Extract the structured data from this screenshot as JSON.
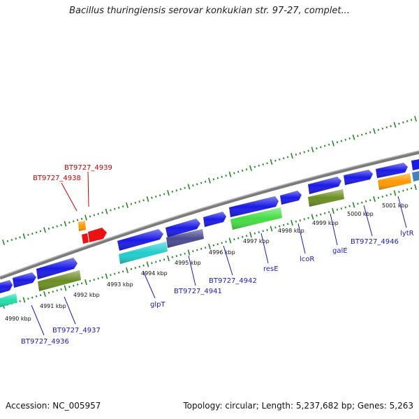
{
  "title": "Bacillus thuringiensis serovar konkukian str. 97-27, complet...",
  "footer": {
    "accession": "Accession: NC_005957",
    "summary": "Topology: circular; Length: 5,237,682 bp; Genes: 5,263"
  },
  "scale_ticks": [
    {
      "label": "4990 kbp"
    },
    {
      "label": "4991 kbp"
    },
    {
      "label": "4992 kbp"
    },
    {
      "label": "4993 kbp"
    },
    {
      "label": "4994 kbp"
    },
    {
      "label": "4995 kbp"
    },
    {
      "label": "4996 kbp"
    },
    {
      "label": "4997 kbp"
    },
    {
      "label": "4998 kbp"
    },
    {
      "label": "4999 kbp"
    },
    {
      "label": "5000 kbp"
    },
    {
      "label": "5001 kbp"
    }
  ],
  "gene_labels": [
    {
      "text": "BT9727_4939",
      "color": "#cc0000"
    },
    {
      "text": "BT9727_4938",
      "color": "#cc0000"
    },
    {
      "text": "BT9727_4936",
      "color": "#1a1acc"
    },
    {
      "text": "BT9727_4937",
      "color": "#1a1acc"
    },
    {
      "text": "glpT",
      "color": "#1a1acc"
    },
    {
      "text": "BT9727_4941",
      "color": "#1a1acc"
    },
    {
      "text": "BT9727_4942",
      "color": "#1a1acc"
    },
    {
      "text": "resE",
      "color": "#1a1acc"
    },
    {
      "text": "lcoR",
      "color": "#1a1acc"
    },
    {
      "text": "galE",
      "color": "#1a1acc"
    },
    {
      "text": "BT9727_4946",
      "color": "#1a1acc"
    },
    {
      "text": "lytR",
      "color": "#1a1acc"
    }
  ],
  "feature_colors": {
    "cds_blue": "#1a1ae6",
    "cyan": "#22cccc",
    "slate": "#4a4a90",
    "green": "#44dd44",
    "olive": "#6b8e23",
    "orange": "#ff9900",
    "red": "#ee1111",
    "teal": "#22ddaa",
    "steel": "#4682b4",
    "backbone": "#8a8a8a",
    "tick_green": "#228b22"
  }
}
